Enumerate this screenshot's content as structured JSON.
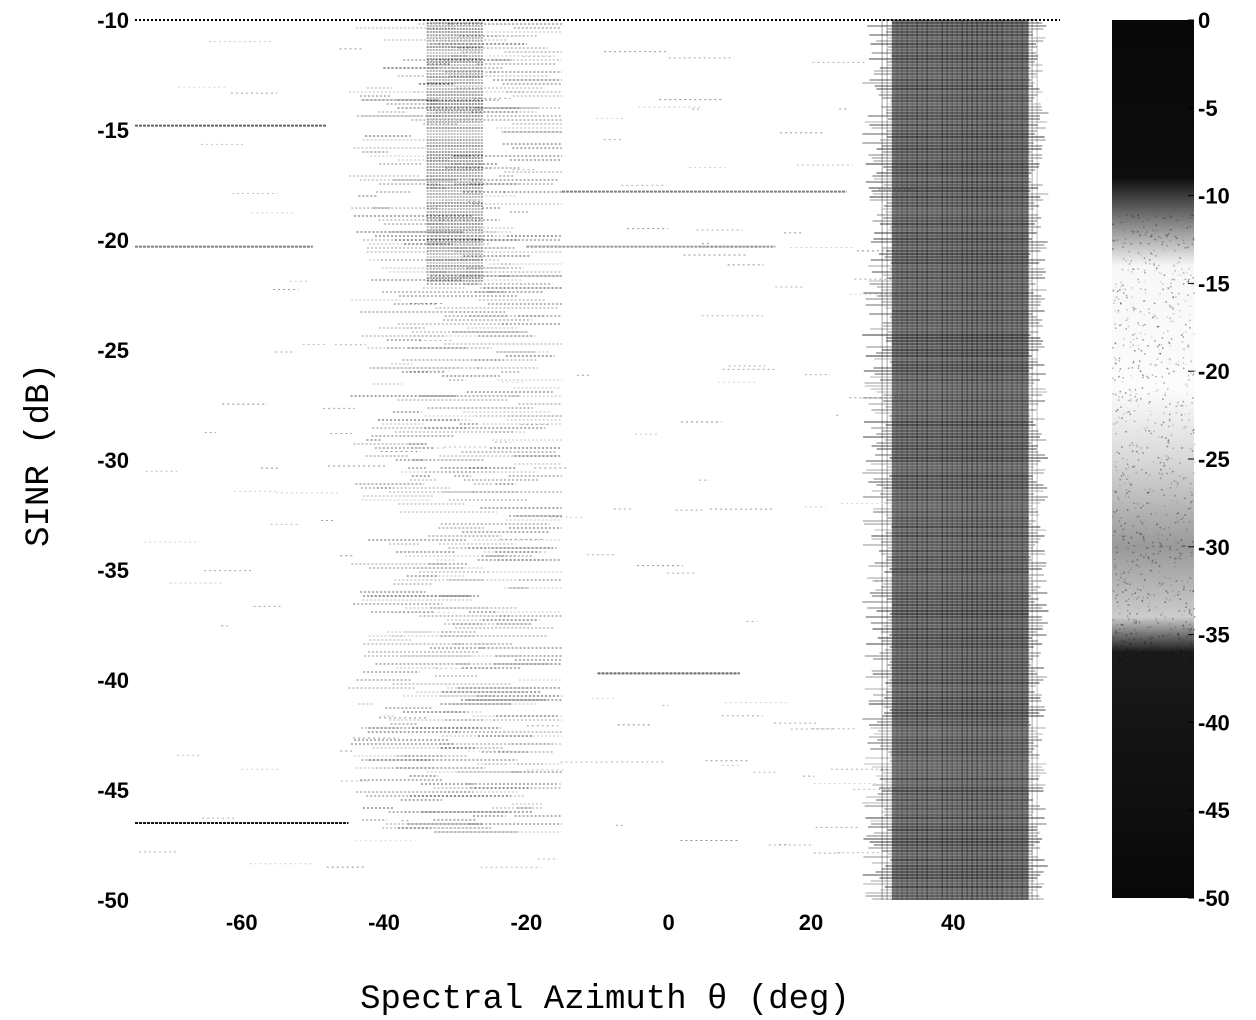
{
  "chart_data": {
    "type": "heatmap",
    "title": "",
    "xlabel": "Spectral Azimuth θ (deg)",
    "ylabel": "SINR (dB)",
    "xlim": [
      -75,
      55
    ],
    "ylim": [
      -50,
      -10
    ],
    "xticks": [
      -60,
      -40,
      -20,
      0,
      20,
      40
    ],
    "yticks": [
      -10,
      -15,
      -20,
      -25,
      -30,
      -35,
      -40,
      -45,
      -50
    ],
    "grid": false,
    "colormap": "gray",
    "colorbar": {
      "range": [
        -50,
        0
      ],
      "ticks": [
        0,
        -5,
        -10,
        -15,
        -20,
        -25,
        -30,
        -35,
        -40,
        -45,
        -50
      ],
      "stops": [
        {
          "value": 0,
          "gray": 0.03
        },
        {
          "value": -9,
          "gray": 0.05
        },
        {
          "value": -12,
          "gray": 0.6
        },
        {
          "value": -14,
          "gray": 0.97
        },
        {
          "value": -21,
          "gray": 0.99
        },
        {
          "value": -25,
          "gray": 0.85
        },
        {
          "value": -30,
          "gray": 0.6
        },
        {
          "value": -34,
          "gray": 0.8
        },
        {
          "value": -36,
          "gray": 0.1
        },
        {
          "value": -50,
          "gray": 0.03
        }
      ]
    },
    "features": [
      {
        "name": "dense band",
        "x_range": [
          30,
          52
        ],
        "y_range": [
          -50,
          -10
        ],
        "intensity": 0.85
      },
      {
        "name": "scattered band",
        "x_range": [
          -45,
          -15
        ],
        "y_range": [
          -47,
          -10
        ],
        "intensity": 0.3
      },
      {
        "name": "streak",
        "x_range": [
          -75,
          -45
        ],
        "y": -46.5,
        "intensity": 0.9
      },
      {
        "name": "streak",
        "x_range": [
          -15,
          25
        ],
        "y": -17.8,
        "intensity": 0.5
      },
      {
        "name": "streak",
        "x_range": [
          -20,
          15
        ],
        "y": -20.3,
        "intensity": 0.4
      },
      {
        "name": "streak",
        "x_range": [
          -10,
          10
        ],
        "y": -39.7,
        "intensity": 0.6
      },
      {
        "name": "streak",
        "x_range": [
          -75,
          -48
        ],
        "y": -14.8,
        "intensity": 0.6
      },
      {
        "name": "streak",
        "x_range": [
          -75,
          -50
        ],
        "y": -20.3,
        "intensity": 0.5
      }
    ]
  }
}
